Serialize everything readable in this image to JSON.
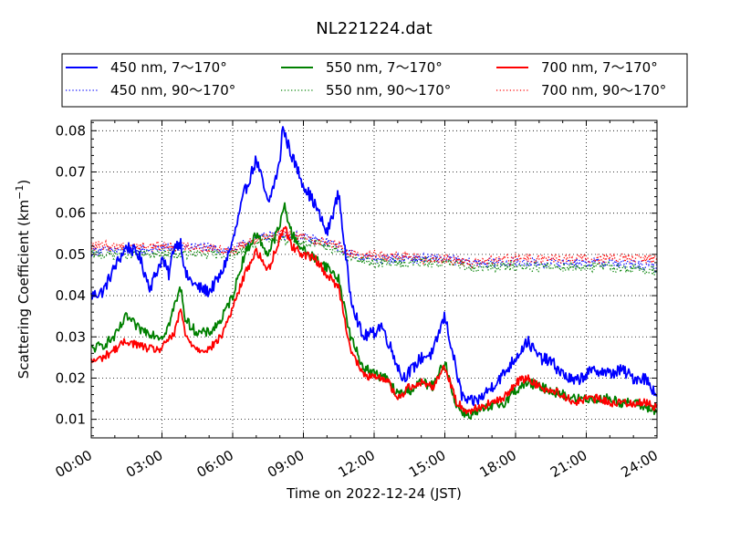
{
  "chart_data": {
    "type": "line",
    "title": "NL221224.dat",
    "xlabel": "Time on 2022-12-24 (JST)",
    "ylabel": "Scattering Coefficient (km",
    "ylabel_sup": "−1",
    "ylabel_close": ")",
    "xlim": [
      0,
      24
    ],
    "ylim": [
      0.0055,
      0.0825
    ],
    "grid": true,
    "legend_position": "top (above plot)",
    "x_ticks": [
      0,
      3,
      6,
      9,
      12,
      15,
      18,
      21,
      24
    ],
    "x_tick_labels": [
      "00:00",
      "03:00",
      "06:00",
      "09:00",
      "12:00",
      "15:00",
      "18:00",
      "21:00",
      "24:00"
    ],
    "y_ticks": [
      0.01,
      0.02,
      0.03,
      0.04,
      0.05,
      0.06,
      0.07,
      0.08
    ],
    "y_tick_labels": [
      "0.01",
      "0.02",
      "0.03",
      "0.04",
      "0.05",
      "0.06",
      "0.07",
      "0.08"
    ],
    "series": [
      {
        "name": "450 nm, 7～170°",
        "color": "#0000ff",
        "style": "solid",
        "noise": 0.0015,
        "x": [
          0,
          0.5,
          1,
          1.5,
          2,
          2.3,
          2.5,
          3,
          3.3,
          3.5,
          3.8,
          4,
          4.5,
          5,
          5.5,
          6,
          6.5,
          7,
          7.2,
          7.5,
          8,
          8.1,
          8.5,
          9,
          9.5,
          10,
          10.5,
          10.8,
          11,
          11.5,
          12,
          12.3,
          12.8,
          13.2,
          13.6,
          14,
          14.5,
          14.8,
          15,
          15.3,
          15.7,
          16,
          16.5,
          17,
          17.5,
          18,
          18.5,
          19,
          19.5,
          20,
          20.5,
          21,
          21.5,
          22,
          22.5,
          23,
          23.5,
          24
        ],
        "y": [
          0.04,
          0.041,
          0.047,
          0.052,
          0.05,
          0.045,
          0.042,
          0.049,
          0.045,
          0.052,
          0.053,
          0.045,
          0.042,
          0.041,
          0.045,
          0.053,
          0.065,
          0.073,
          0.069,
          0.062,
          0.072,
          0.081,
          0.074,
          0.067,
          0.062,
          0.055,
          0.065,
          0.049,
          0.04,
          0.03,
          0.031,
          0.033,
          0.026,
          0.02,
          0.022,
          0.025,
          0.026,
          0.032,
          0.035,
          0.027,
          0.016,
          0.014,
          0.015,
          0.018,
          0.021,
          0.025,
          0.029,
          0.025,
          0.024,
          0.021,
          0.019,
          0.021,
          0.022,
          0.021,
          0.022,
          0.02,
          0.02,
          0.016
        ]
      },
      {
        "name": "450 nm, 90～170°",
        "color": "#0000ff",
        "style": "dotted",
        "noise": 0.0012,
        "x": [
          0,
          2,
          4,
          6,
          7,
          8,
          9,
          10,
          10.5,
          11,
          12,
          14,
          15,
          16,
          18,
          20,
          22,
          24
        ],
        "y": [
          0.051,
          0.051,
          0.052,
          0.051,
          0.054,
          0.055,
          0.054,
          0.053,
          0.052,
          0.05,
          0.049,
          0.049,
          0.049,
          0.048,
          0.048,
          0.048,
          0.048,
          0.047
        ]
      },
      {
        "name": "550 nm, 7～170°",
        "color": "#008000",
        "style": "solid",
        "noise": 0.0012,
        "x": [
          0,
          0.5,
          1,
          1.5,
          2,
          2.5,
          3,
          3.3,
          3.5,
          3.8,
          4,
          4.5,
          5,
          5.5,
          6,
          6.5,
          7,
          7.3,
          7.5,
          8,
          8.2,
          8.5,
          9,
          9.5,
          10,
          10.5,
          11,
          11.5,
          12,
          12.5,
          13,
          13.5,
          14,
          14.5,
          15,
          15.5,
          16,
          16.5,
          17,
          17.5,
          18,
          18.5,
          19,
          19.5,
          20,
          20.5,
          21,
          21.5,
          22,
          22.5,
          23,
          23.5,
          24
        ],
        "y": [
          0.027,
          0.028,
          0.03,
          0.035,
          0.032,
          0.031,
          0.03,
          0.033,
          0.037,
          0.042,
          0.034,
          0.031,
          0.031,
          0.034,
          0.04,
          0.05,
          0.055,
          0.052,
          0.05,
          0.057,
          0.062,
          0.055,
          0.051,
          0.049,
          0.047,
          0.044,
          0.03,
          0.023,
          0.021,
          0.02,
          0.016,
          0.017,
          0.019,
          0.018,
          0.024,
          0.013,
          0.011,
          0.012,
          0.013,
          0.014,
          0.017,
          0.019,
          0.018,
          0.017,
          0.016,
          0.015,
          0.015,
          0.015,
          0.015,
          0.014,
          0.014,
          0.013,
          0.012
        ]
      },
      {
        "name": "550 nm, 90～170°",
        "color": "#008000",
        "style": "dotted",
        "noise": 0.0012,
        "x": [
          0,
          2,
          4,
          6,
          7,
          8,
          9,
          10,
          10.5,
          11,
          12,
          14,
          15,
          16,
          18,
          20,
          22,
          24
        ],
        "y": [
          0.05,
          0.05,
          0.05,
          0.05,
          0.053,
          0.054,
          0.053,
          0.052,
          0.051,
          0.049,
          0.048,
          0.048,
          0.048,
          0.047,
          0.047,
          0.047,
          0.047,
          0.046
        ]
      },
      {
        "name": "700 nm, 7～170°",
        "color": "#ff0000",
        "style": "solid",
        "noise": 0.001,
        "x": [
          0,
          0.5,
          1,
          1.5,
          2,
          2.5,
          3,
          3.3,
          3.5,
          3.8,
          4,
          4.5,
          5,
          5.5,
          6,
          6.5,
          7,
          7.3,
          7.5,
          8,
          8.2,
          8.5,
          9,
          9.5,
          10,
          10.5,
          11,
          11.5,
          12,
          12.5,
          13,
          13.5,
          14,
          14.5,
          15,
          15.5,
          16,
          16.5,
          17,
          17.5,
          18,
          18.5,
          19,
          19.5,
          20,
          20.5,
          21,
          21.5,
          22,
          22.5,
          23,
          23.5,
          24
        ],
        "y": [
          0.024,
          0.025,
          0.027,
          0.029,
          0.028,
          0.027,
          0.027,
          0.03,
          0.03,
          0.037,
          0.03,
          0.027,
          0.027,
          0.03,
          0.037,
          0.045,
          0.051,
          0.048,
          0.046,
          0.054,
          0.057,
          0.052,
          0.05,
          0.049,
          0.045,
          0.042,
          0.027,
          0.021,
          0.02,
          0.02,
          0.015,
          0.018,
          0.019,
          0.018,
          0.023,
          0.014,
          0.012,
          0.013,
          0.014,
          0.015,
          0.019,
          0.02,
          0.018,
          0.017,
          0.016,
          0.014,
          0.015,
          0.015,
          0.014,
          0.014,
          0.014,
          0.014,
          0.013
        ]
      },
      {
        "name": "700 nm, 90～170°",
        "color": "#ff0000",
        "style": "dotted",
        "noise": 0.0012,
        "x": [
          0,
          2,
          4,
          6,
          7,
          8,
          9,
          10,
          10.5,
          11,
          12,
          14,
          15,
          16,
          18,
          20,
          22,
          24
        ],
        "y": [
          0.052,
          0.052,
          0.052,
          0.051,
          0.054,
          0.055,
          0.054,
          0.053,
          0.052,
          0.05,
          0.05,
          0.049,
          0.049,
          0.048,
          0.049,
          0.049,
          0.049,
          0.049
        ]
      }
    ]
  }
}
